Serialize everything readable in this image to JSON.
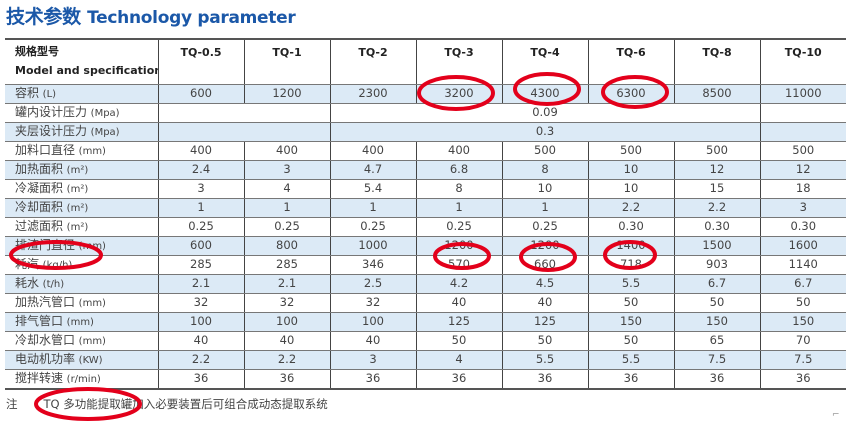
{
  "title": {
    "cn": "技术参数",
    "en": "Technology parameter"
  },
  "table": {
    "header_cn": "规格型号",
    "header_en": "Model and specification",
    "models": [
      "TQ-0.5",
      "TQ-1",
      "TQ-2",
      "TQ-3",
      "TQ-4",
      "TQ-6",
      "TQ-8",
      "TQ-10"
    ],
    "rows": [
      {
        "label": "容积",
        "unit": "(L)",
        "values": [
          "600",
          "1200",
          "2300",
          "3200",
          "4300",
          "6300",
          "8500",
          "11000"
        ]
      },
      {
        "label": "罐内设计压力",
        "unit": "(Mpa)",
        "merged": "0.09"
      },
      {
        "label": "夹层设计压力",
        "unit": "(Mpa)",
        "merged": "0.3"
      },
      {
        "label": "加料口直径",
        "unit": "(mm)",
        "values": [
          "400",
          "400",
          "400",
          "400",
          "500",
          "500",
          "500",
          "500"
        ]
      },
      {
        "label": "加热面积",
        "unit": "(m²)",
        "values": [
          "2.4",
          "3",
          "4.7",
          "6.8",
          "8",
          "10",
          "12",
          "12"
        ]
      },
      {
        "label": "冷凝面积",
        "unit": "(m²)",
        "values": [
          "3",
          "4",
          "5.4",
          "8",
          "10",
          "10",
          "15",
          "18"
        ]
      },
      {
        "label": "冷却面积",
        "unit": "(m²)",
        "values": [
          "1",
          "1",
          "1",
          "1",
          "1",
          "2.2",
          "2.2",
          "3"
        ]
      },
      {
        "label": "过滤面积",
        "unit": "(m²)",
        "values": [
          "0.25",
          "0.25",
          "0.25",
          "0.25",
          "0.25",
          "0.30",
          "0.30",
          "0.30"
        ]
      },
      {
        "label": "排渣门直径",
        "unit": "(mm)",
        "values": [
          "600",
          "800",
          "1000",
          "1200",
          "1200",
          "1400",
          "1500",
          "1600"
        ]
      },
      {
        "label": "耗汽",
        "unit": "(kg/h)",
        "values": [
          "285",
          "285",
          "346",
          "570",
          "660",
          "718",
          "903",
          "1140"
        ]
      },
      {
        "label": "耗水",
        "unit": "(t/h)",
        "values": [
          "2.1",
          "2.1",
          "2.5",
          "4.2",
          "4.5",
          "5.5",
          "6.7",
          "6.7"
        ]
      },
      {
        "label": "加热汽管口",
        "unit": "(mm)",
        "values": [
          "32",
          "32",
          "32",
          "40",
          "40",
          "50",
          "50",
          "50"
        ]
      },
      {
        "label": "排气管口",
        "unit": "(mm)",
        "values": [
          "100",
          "100",
          "100",
          "125",
          "125",
          "150",
          "150",
          "150"
        ]
      },
      {
        "label": "冷却水管口",
        "unit": "(mm)",
        "values": [
          "40",
          "40",
          "40",
          "50",
          "50",
          "50",
          "65",
          "70"
        ]
      },
      {
        "label": "电动机功率",
        "unit": "(KW)",
        "values": [
          "2.2",
          "2.2",
          "3",
          "4",
          "5.5",
          "5.5",
          "7.5",
          "7.5"
        ]
      },
      {
        "label": "搅拌转速",
        "unit": "(r/min)",
        "values": [
          "36",
          "36",
          "36",
          "36",
          "36",
          "36",
          "36",
          "36"
        ]
      }
    ]
  },
  "note": {
    "label": "注",
    "text": "TQ 多功能提取罐加入必要装置后可组合成动态提取系统"
  },
  "colors": {
    "title": "#1b58a8",
    "row_alt": "#dceaf6",
    "annotation": "#e3001b"
  }
}
